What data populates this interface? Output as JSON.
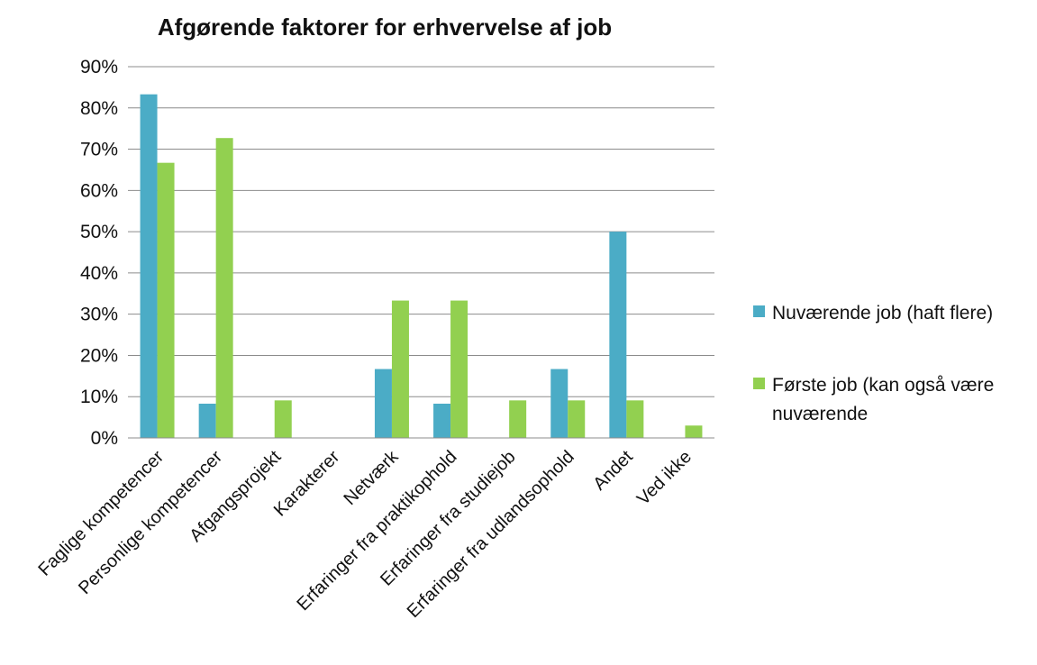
{
  "chart_data": {
    "type": "bar",
    "title": "Afgørende faktorer for erhvervelse af job",
    "xlabel": "",
    "ylabel": "",
    "ylim": [
      0,
      90
    ],
    "yticks": [
      "0%",
      "10%",
      "20%",
      "30%",
      "40%",
      "50%",
      "60%",
      "70%",
      "80%",
      "90%"
    ],
    "grid": true,
    "legend_position": "right",
    "categories": [
      "Faglige kompetencer",
      "Personlige kompetencer",
      "Afgangsprojekt",
      "Karakterer",
      "Netværk",
      "Erfaringer fra praktikophold",
      "Erfaringer fra studiejob",
      "Erfaringer fra udlandsophold",
      "Andet",
      "Ved ikke"
    ],
    "series": [
      {
        "name": "Nuværende job (haft flere)",
        "color": "#4bacc6",
        "values": [
          83.3,
          8.3,
          0,
          0,
          16.7,
          8.3,
          0,
          16.7,
          50,
          0
        ]
      },
      {
        "name": "Første job (kan også være nuværende",
        "color": "#92d050",
        "values": [
          66.7,
          72.7,
          9.1,
          0,
          33.3,
          33.3,
          9.1,
          9.1,
          9.1,
          3
        ]
      }
    ],
    "legend": {
      "entries": [
        {
          "lines": [
            "Nuværende job (haft flere)"
          ]
        },
        {
          "lines": [
            "Første job (kan også være",
            "nuværende"
          ]
        }
      ]
    }
  }
}
